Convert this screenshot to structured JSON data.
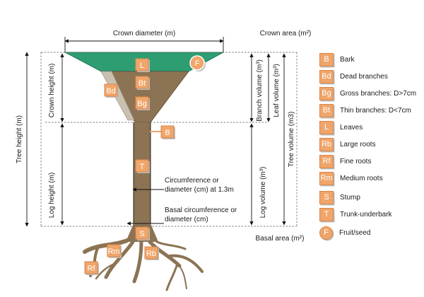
{
  "labels": {
    "crown_diameter": "Crown diameter (m)",
    "crown_area": "Crown area (m²)",
    "tree_height": "Tree height (m)",
    "crown_height": "Crown height (m)",
    "log_height": "Log height (m)",
    "branch_volume": "Branch volume (m³)",
    "leaf_volume": "Leaf volume (m³)",
    "tree_volume": "Tree volume (m3)",
    "log_volume": "Log volume (m³)",
    "circumference_line1": "Circumference or",
    "circumference_line2": "diameter (cm) at 1.3m",
    "basal_circ_line1": "Basal circumference or",
    "basal_circ_line2": "diameter (cm)",
    "basal_area": "Basal area (m²)"
  },
  "badges": {
    "L": "L",
    "F": "F",
    "Bt": "Bt",
    "Bd": "Bd",
    "Bg": "Bg",
    "B": "B",
    "T": "T",
    "S": "S",
    "Rm": "Rm",
    "Rb": "Rb",
    "Rf": "Rf"
  },
  "legend": [
    {
      "code": "B",
      "label": "Bark",
      "shape": "square"
    },
    {
      "code": "Bd",
      "label": "Dead branches",
      "shape": "square"
    },
    {
      "code": "Bg",
      "label": "Gross branches: D>7cm",
      "shape": "square"
    },
    {
      "code": "Bt",
      "label": "Thin branches: D<7cm",
      "shape": "square"
    },
    {
      "code": "L",
      "label": "Leaves",
      "shape": "square"
    },
    {
      "code": "Rb",
      "label": "Large roots",
      "shape": "square"
    },
    {
      "code": "Rf",
      "label": "Fine roots",
      "shape": "square"
    },
    {
      "code": "Rm",
      "label": "Medium roots",
      "shape": "square"
    },
    {
      "code": "S",
      "label": "Stump",
      "shape": "square"
    },
    {
      "code": "T",
      "label": "Trunk-underbark",
      "shape": "square"
    },
    {
      "code": "F",
      "label": "Fruit/seed",
      "shape": "circle"
    }
  ],
  "colors": {
    "crown": "#2e9d72",
    "wood": "#8b7353",
    "trunk_edge": "#3d2f1e",
    "dead_branch": "#c9c0b0",
    "badge": "#f0a56a"
  }
}
